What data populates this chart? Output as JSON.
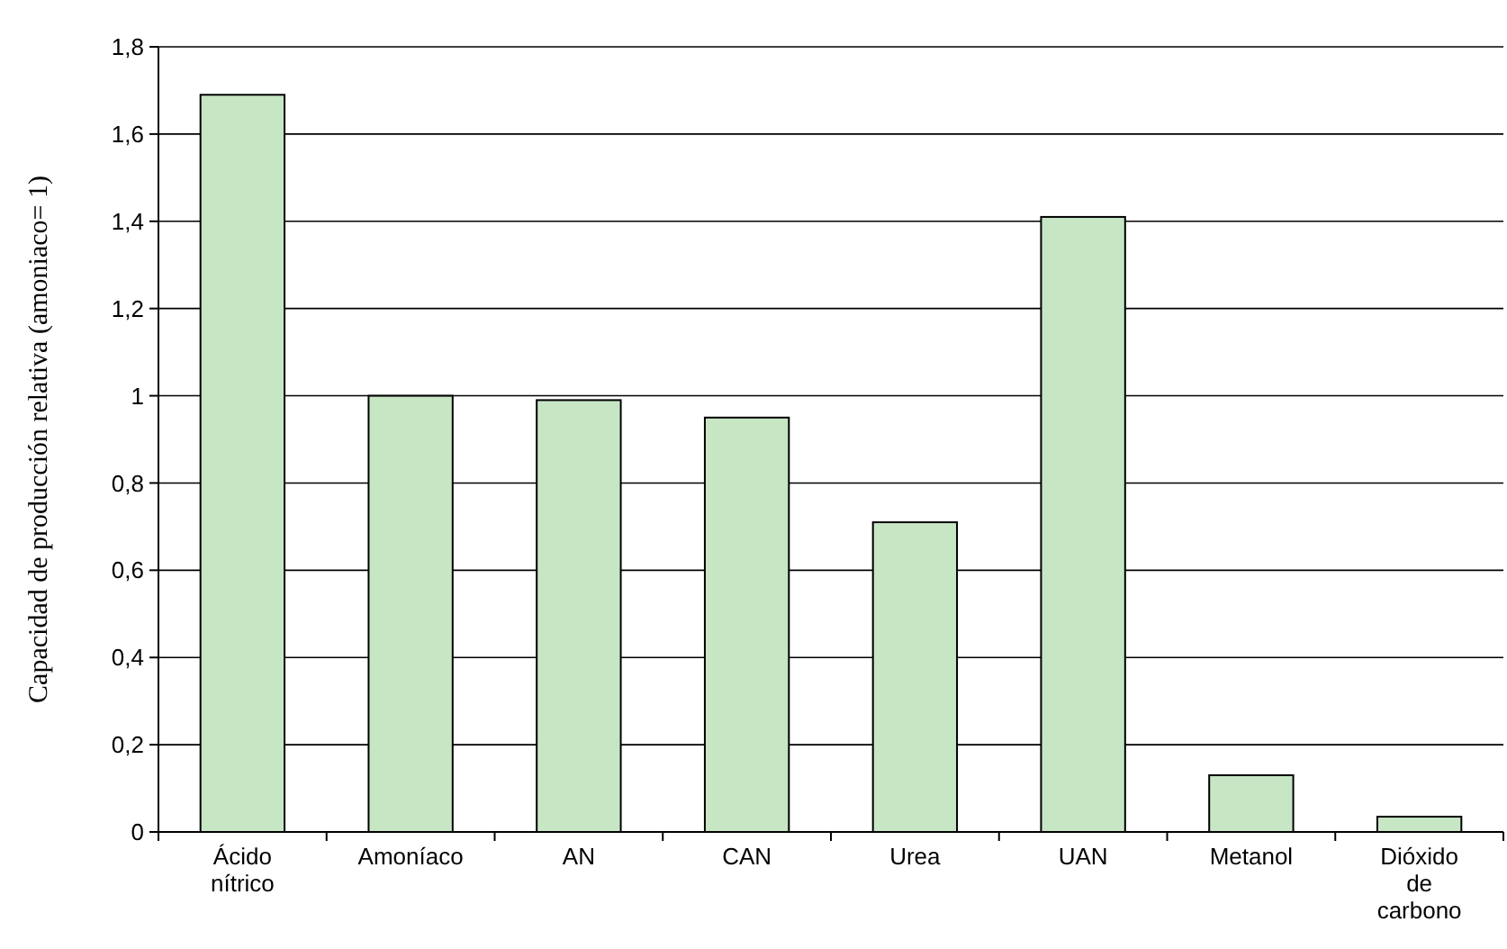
{
  "chart_data": {
    "type": "bar",
    "ylabel": "Capacidad de producción relativa (amoniaco= 1)",
    "categories": [
      "Ácido nítrico",
      "Amoníaco",
      "AN",
      "CAN",
      "Urea",
      "UAN",
      "Metanol",
      "Dióxido de carbono"
    ],
    "values": [
      1.69,
      1.0,
      0.99,
      0.95,
      0.71,
      1.41,
      0.13,
      0.035
    ],
    "color": "#c6e6c4",
    "ylim": [
      0,
      1.8
    ],
    "yticks": [
      0,
      {
        "value": 0.2,
        "label": "0,2"
      },
      {
        "value": 0.4,
        "label": "0,4"
      },
      {
        "value": 0.6,
        "label": "0,6"
      },
      {
        "value": 0.8,
        "label": "0,8"
      },
      1,
      {
        "value": 1.2,
        "label": "1,2"
      },
      {
        "value": 1.4,
        "label": "1,4"
      },
      {
        "value": 1.6,
        "label": "1,6"
      },
      {
        "value": 1.8,
        "label": "1,8"
      }
    ],
    "grid": "y"
  }
}
